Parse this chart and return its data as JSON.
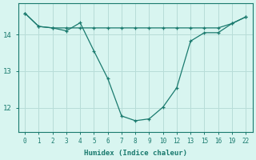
{
  "xlabel": "Humidex (Indice chaleur)",
  "bg_color": "#d8f5f0",
  "line_color": "#1a7a6e",
  "grid_color": "#b8ddd8",
  "xtick_labels": [
    "0",
    "1",
    "2",
    "3",
    "4",
    "5",
    "6",
    "7",
    "8",
    "9",
    "10",
    "12",
    "13",
    "15",
    "16",
    "19",
    "22"
  ],
  "line1_y": [
    14.58,
    14.22,
    14.18,
    14.1,
    14.32,
    13.55,
    12.8,
    11.78,
    11.65,
    11.7,
    12.02,
    12.55,
    13.82,
    14.05,
    14.05,
    14.3,
    14.48
  ],
  "line2_y": [
    14.58,
    14.22,
    14.18,
    14.18,
    14.18,
    14.18,
    14.18,
    14.18,
    14.18,
    14.18,
    14.18,
    14.18,
    14.18,
    14.18,
    14.18,
    14.3,
    14.48
  ],
  "yticks": [
    12,
    13,
    14
  ],
  "ylim": [
    11.35,
    14.85
  ],
  "figsize": [
    3.2,
    2.0
  ],
  "dpi": 100
}
